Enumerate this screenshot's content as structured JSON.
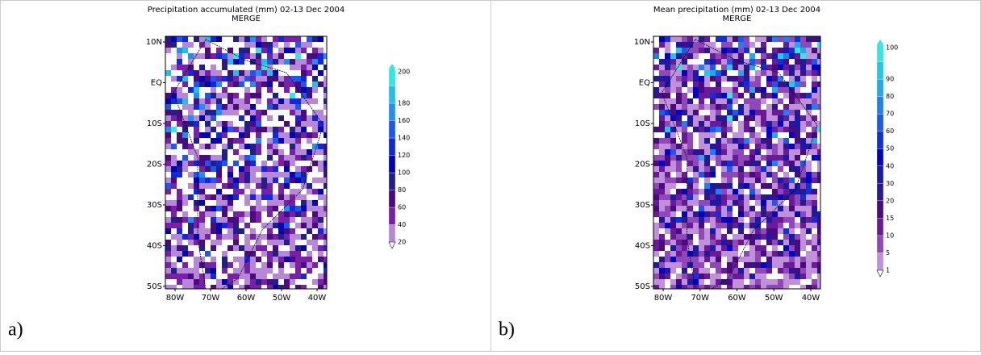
{
  "panels": [
    {
      "label": "a)",
      "title": "Precipitation accumulated (mm) 02-13 Dec 2004",
      "subtitle": "MERGE",
      "lat_labels": [
        "10N",
        "EQ",
        "10S",
        "20S",
        "30S",
        "40S",
        "50S"
      ],
      "lon_labels": [
        "80W",
        "70W",
        "60W",
        "50W",
        "40W"
      ],
      "colorbar_labels": [
        "20",
        "40",
        "60",
        "80",
        "100",
        "120",
        "140",
        "160",
        "180",
        "200"
      ]
    },
    {
      "label": "b)",
      "title": "Mean precipitation (mm) 02-13 Dec 2004",
      "subtitle": "MERGE",
      "lat_labels": [
        "10N",
        "EQ",
        "10S",
        "20S",
        "30S",
        "40S",
        "50S"
      ],
      "lon_labels": [
        "80W",
        "70W",
        "60W",
        "50W",
        "40W"
      ],
      "colorbar_labels": [
        "1",
        "5",
        "10",
        "15",
        "20",
        "30",
        "40",
        "50",
        "60",
        "70",
        "80",
        "90",
        "100"
      ]
    }
  ]
}
